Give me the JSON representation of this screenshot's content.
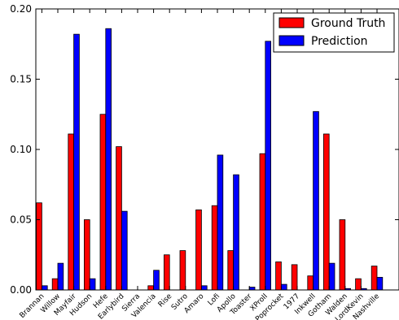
{
  "chart_data": {
    "type": "bar",
    "title": "",
    "xlabel": "",
    "ylabel": "",
    "ylim": [
      0,
      0.2
    ],
    "yticks": [
      "0.00",
      "0.05",
      "0.10",
      "0.15",
      "0.20"
    ],
    "grid": false,
    "legend_position": "top-right",
    "categories": [
      "Brannan",
      "Willow",
      "Mayfair",
      "Hudson",
      "Hefe",
      "Earlybird",
      "Sierra",
      "Valencia",
      "Rise",
      "Sutro",
      "Amaro",
      "Lofi",
      "Apollo",
      "Toaster",
      "XProII",
      "Poprocket",
      "1977",
      "Inkwell",
      "Gotham",
      "Walden",
      "LordKevin",
      "Nashville"
    ],
    "series": [
      {
        "name": "Ground Truth",
        "color": "#ff0000",
        "values": [
          0.062,
          0.008,
          0.111,
          0.05,
          0.125,
          0.102,
          0.0,
          0.003,
          0.025,
          0.028,
          0.057,
          0.06,
          0.028,
          0.0,
          0.097,
          0.02,
          0.018,
          0.01,
          0.111,
          0.05,
          0.008,
          0.017
        ]
      },
      {
        "name": "Prediction",
        "color": "#0000ff",
        "values": [
          0.003,
          0.019,
          0.182,
          0.008,
          0.186,
          0.056,
          0.0,
          0.014,
          0.0,
          0.0,
          0.003,
          0.096,
          0.082,
          0.002,
          0.177,
          0.004,
          0.0,
          0.127,
          0.019,
          0.001,
          0.001,
          0.009
        ]
      }
    ]
  }
}
